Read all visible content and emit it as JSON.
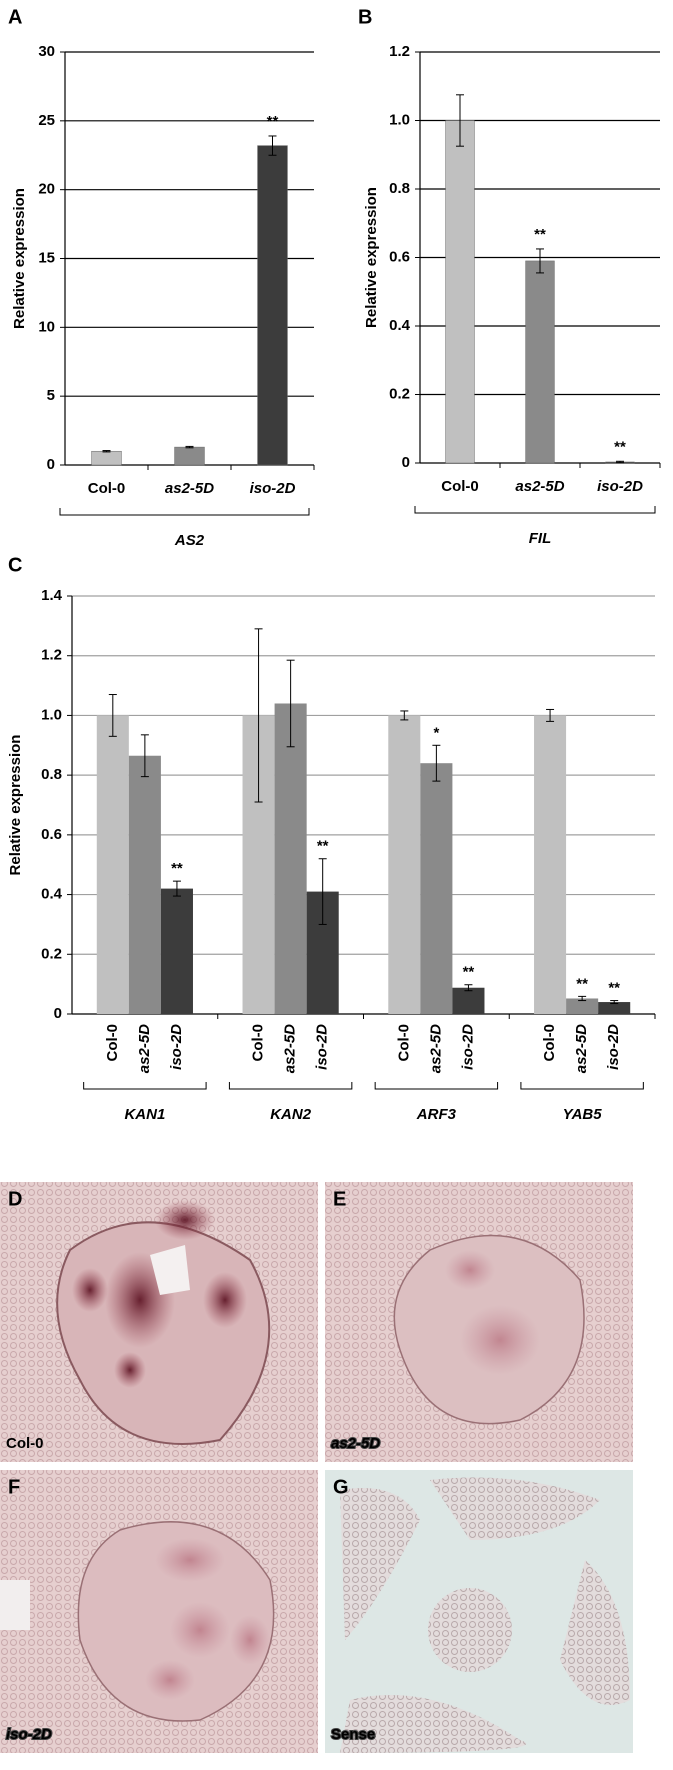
{
  "chart_data": [
    {
      "type": "bar",
      "panel": "A",
      "ylabel": "Relative expression",
      "categories": [
        "Col-0",
        "as2-5D",
        "iso-2D"
      ],
      "values": [
        1.0,
        1.3,
        23.2
      ],
      "errors": [
        0.05,
        0.05,
        0.7
      ],
      "colors": [
        "#c0c0c0",
        "#8a8a8a",
        "#3c3c3c"
      ],
      "annotations": [
        null,
        null,
        "**"
      ],
      "group_label": "AS2",
      "ylim": [
        0,
        30
      ],
      "yticks": [
        0,
        5,
        10,
        15,
        20,
        25,
        30
      ],
      "grid": true,
      "grid_color": "#000000"
    },
    {
      "type": "bar",
      "panel": "B",
      "ylabel": "Relative expression",
      "categories": [
        "Col-0",
        "as2-5D",
        "iso-2D"
      ],
      "values": [
        1.0,
        0.59,
        0.003
      ],
      "errors": [
        0.075,
        0.035,
        0.002
      ],
      "colors": [
        "#c0c0c0",
        "#8a8a8a",
        "#3c3c3c"
      ],
      "annotations": [
        null,
        "**",
        "**"
      ],
      "group_label": "FIL",
      "ylim": [
        0,
        1.2
      ],
      "yticks": [
        0,
        0.2,
        0.4,
        0.6,
        0.8,
        {
          "value": 1,
          "label": "1.0"
        },
        1.2
      ],
      "grid": true,
      "grid_color": "#000000"
    },
    {
      "type": "grouped_bar",
      "panel": "C",
      "ylabel": "Relative expression",
      "categories": [
        "KAN1",
        "KAN2",
        "ARF3",
        "YAB5"
      ],
      "series": [
        {
          "name": "Col-0",
          "color": "#c0c0c0",
          "values": [
            1.0,
            1.0,
            1.0,
            1.0
          ],
          "errors": [
            0.07,
            0.29,
            0.015,
            0.02
          ],
          "annotations": [
            null,
            null,
            null,
            null
          ]
        },
        {
          "name": "as2-5D",
          "color": "#8a8a8a",
          "values": [
            0.865,
            1.04,
            0.84,
            0.052
          ],
          "errors": [
            0.07,
            0.145,
            0.06,
            0.007
          ],
          "annotations": [
            null,
            null,
            "*",
            "**"
          ]
        },
        {
          "name": "iso-2D",
          "color": "#3c3c3c",
          "values": [
            0.42,
            0.41,
            0.088,
            0.04
          ],
          "errors": [
            0.025,
            0.11,
            0.01,
            0.005
          ],
          "annotations": [
            "**",
            "**",
            "**",
            "**"
          ]
        }
      ],
      "ylim": [
        0,
        1.4
      ],
      "yticks": [
        0,
        0.2,
        0.4,
        0.6,
        0.8,
        {
          "value": 1,
          "label": "1.0"
        },
        1.2,
        1.4
      ],
      "grid": true,
      "grid_color": "#a0a0a0"
    }
  ],
  "images": [
    {
      "panel": "D",
      "label": "Col-0"
    },
    {
      "panel": "E",
      "label": "as2-5D"
    },
    {
      "panel": "F",
      "label": "iso-2D"
    },
    {
      "panel": "G",
      "label": "Sense"
    }
  ]
}
